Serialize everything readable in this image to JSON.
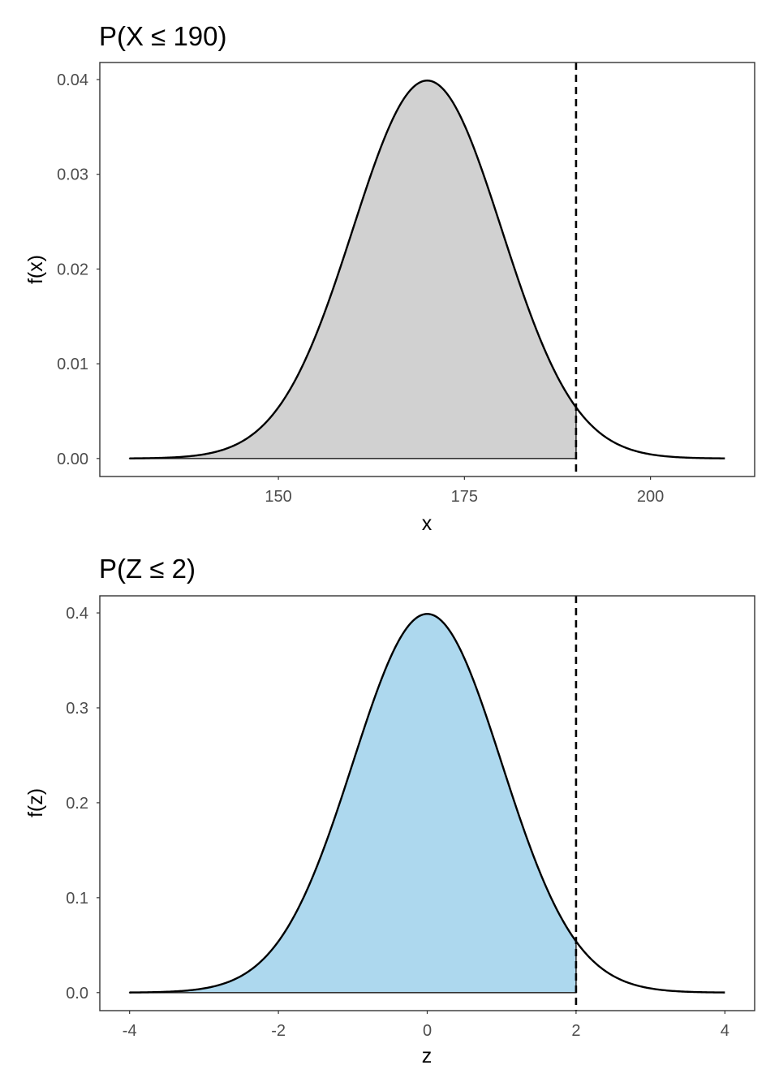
{
  "colors": {
    "curve": "#000000",
    "cutoff_line": "#000000",
    "shade_outline": "#333333",
    "axis_text": "#4d4d4d",
    "border": "#333333"
  },
  "chart_data": [
    {
      "type": "area",
      "title": "P(X ≤ 190)",
      "xlabel": "x",
      "ylabel": "f(x)",
      "distribution": {
        "name": "normal",
        "mean": 170,
        "sd": 10
      },
      "x_range": [
        130,
        210
      ],
      "xlim": [
        126,
        214
      ],
      "ylim": [
        -0.0019,
        0.0418
      ],
      "x_ticks": [
        150,
        175,
        200
      ],
      "x_tick_labels": [
        "150",
        "175",
        "200"
      ],
      "y_ticks": [
        0.0,
        0.01,
        0.02,
        0.03,
        0.04
      ],
      "y_tick_labels": [
        "0.00",
        "0.01",
        "0.02",
        "0.03",
        "0.04"
      ],
      "shaded_region": {
        "from": 130,
        "to": 190,
        "fill": "#d1d1d1"
      },
      "cutoff": 190,
      "grid": false
    },
    {
      "type": "area",
      "title": "P(Z ≤ 2)",
      "xlabel": "z",
      "ylabel": "f(z)",
      "distribution": {
        "name": "normal",
        "mean": 0,
        "sd": 1
      },
      "x_range": [
        -4,
        4
      ],
      "xlim": [
        -4.4,
        4.4
      ],
      "ylim": [
        -0.019,
        0.418
      ],
      "x_ticks": [
        -4,
        -2,
        0,
        2,
        4
      ],
      "x_tick_labels": [
        "-4",
        "-2",
        "0",
        "2",
        "4"
      ],
      "y_ticks": [
        0.0,
        0.1,
        0.2,
        0.3,
        0.4
      ],
      "y_tick_labels": [
        "0.0",
        "0.1",
        "0.2",
        "0.3",
        "0.4"
      ],
      "shaded_region": {
        "from": -4,
        "to": 2,
        "fill": "#add8ee"
      },
      "cutoff": 2,
      "grid": false
    }
  ]
}
